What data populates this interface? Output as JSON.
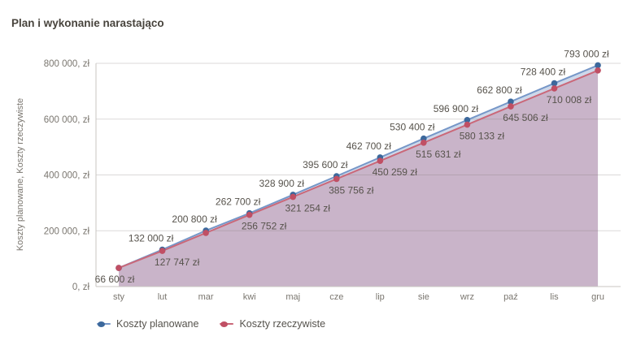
{
  "title": "Plan i wykonanie narastająco",
  "y_axis_title": "Koszty planowane, Koszty rzeczywiste",
  "legend": {
    "items": [
      {
        "label": "Koszty planowane",
        "dot_color": "#3c689c",
        "line_color": "#7697c8"
      },
      {
        "label": "Koszty rzeczywiste",
        "dot_color": "#c04f64",
        "line_color": "#ca6879"
      }
    ]
  },
  "chart_data": {
    "type": "area",
    "title": "Plan i wykonanie narastająco",
    "xlabel": "",
    "ylabel": "Koszty planowane, Koszty rzeczywiste",
    "categories": [
      "sty",
      "lut",
      "mar",
      "kwi",
      "maj",
      "cze",
      "lip",
      "sie",
      "wrz",
      "paź",
      "lis",
      "gru"
    ],
    "series": [
      {
        "name": "Koszty planowane",
        "line_color": "#7697c8",
        "point_color": "#3c689c",
        "area_color": "#cdd8ea",
        "values": [
          66600,
          132000,
          200800,
          262700,
          328900,
          395600,
          462700,
          530400,
          596900,
          662800,
          728400,
          793000
        ],
        "point_labels": [
          "66 600 zł",
          "132 000 zł",
          "200 800 zł",
          "262 700 zł",
          "328 900 zł",
          "395 600 zł",
          "462 700 zł",
          "530 400 zł",
          "596 900 zł",
          "662 800 zł",
          "728 400 zł",
          "793 000 zł"
        ]
      },
      {
        "name": "Koszty rzeczywiste",
        "line_color": "#ca6879",
        "point_color": "#c04f64",
        "area_color": "#c9b4c9",
        "values": [
          66600,
          127747,
          192250,
          256752,
          321254,
          385756,
          450259,
          515631,
          580133,
          645506,
          710008,
          774510
        ],
        "point_labels": [
          null,
          "127 747 zł",
          null,
          "256 752 zł",
          "321 254 zł",
          "385 756 zł",
          "450 259 zł",
          "515 631 zł",
          "580 133 zł",
          "645 506 zł",
          "710 008 zł",
          null
        ]
      }
    ],
    "ylim": [
      0,
      800000
    ],
    "y_ticks": [
      {
        "value": 0,
        "label": "0, zł"
      },
      {
        "value": 200000,
        "label": "200 000, zł"
      },
      {
        "value": 400000,
        "label": "400 000, zł"
      },
      {
        "value": 600000,
        "label": "600 000, zł"
      },
      {
        "value": 800000,
        "label": "800 000, zł"
      }
    ],
    "grid": true,
    "legend_position": "bottom",
    "grid_color": "rgba(125,120,114,0.28)",
    "axis_color": "#c9c6c1"
  }
}
